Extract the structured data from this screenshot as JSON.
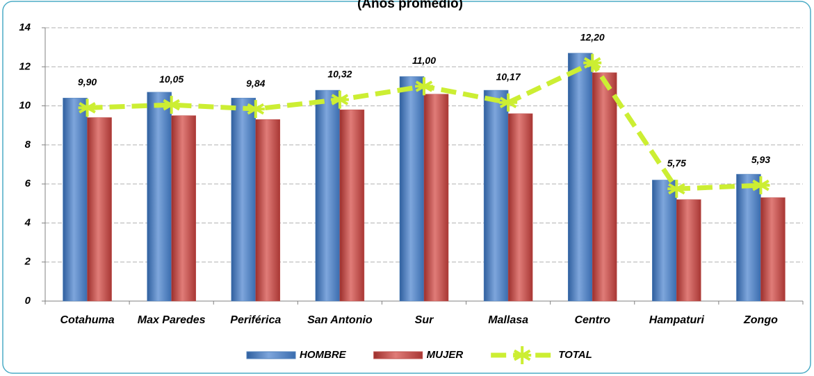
{
  "chart_data": {
    "type": "bar_line",
    "title": "(Años promedio)",
    "categories": [
      "Cotahuma",
      "Max Paredes",
      "Periférica",
      "San Antonio",
      "Sur",
      "Mallasa",
      "Centro",
      "Hampaturi",
      "Zongo"
    ],
    "series": [
      {
        "name": "HOMBRE",
        "type": "bar",
        "color": "#4f81bd",
        "values": [
          10.4,
          10.7,
          10.4,
          10.8,
          11.5,
          10.8,
          12.7,
          6.2,
          6.5
        ]
      },
      {
        "name": "MUJER",
        "type": "bar",
        "color": "#c0504d",
        "values": [
          9.4,
          9.5,
          9.3,
          9.8,
          10.6,
          9.6,
          11.7,
          5.2,
          5.3
        ]
      },
      {
        "name": "TOTAL",
        "type": "line",
        "color": "#ccee33",
        "values": [
          9.9,
          10.05,
          9.84,
          10.32,
          11.0,
          10.17,
          12.2,
          5.75,
          5.93
        ],
        "value_labels": [
          "9,90",
          "10,05",
          "9,84",
          "10,32",
          "11,00",
          "10,17",
          "12,20",
          "5,75",
          "5,93"
        ]
      }
    ],
    "ylim": [
      0,
      14
    ],
    "yticks": [
      0,
      2,
      4,
      6,
      8,
      10,
      12,
      14
    ],
    "grid": true,
    "legend": "bottom"
  }
}
